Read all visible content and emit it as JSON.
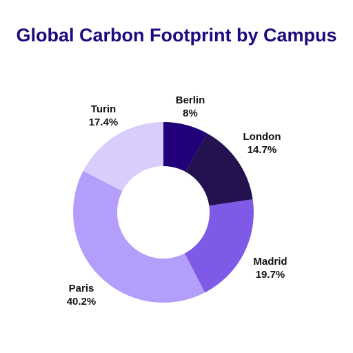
{
  "chart_data": {
    "type": "pie",
    "title": "Global Carbon Footprint by Campus",
    "donut": true,
    "legend": "none",
    "slices": [
      {
        "label": "Berlin",
        "value": 8,
        "value_label": "8%",
        "color": "#22007a"
      },
      {
        "label": "London",
        "value": 14.7,
        "value_label": "14.7%",
        "color": "#241150"
      },
      {
        "label": "Madrid",
        "value": 19.7,
        "value_label": "19.7%",
        "color": "#7f5ae6"
      },
      {
        "label": "Paris",
        "value": 40.2,
        "value_label": "40.2%",
        "color": "#b39ffb"
      },
      {
        "label": "Turin",
        "value": 17.4,
        "value_label": "17.4%",
        "color": "#d9cdfc"
      }
    ]
  }
}
